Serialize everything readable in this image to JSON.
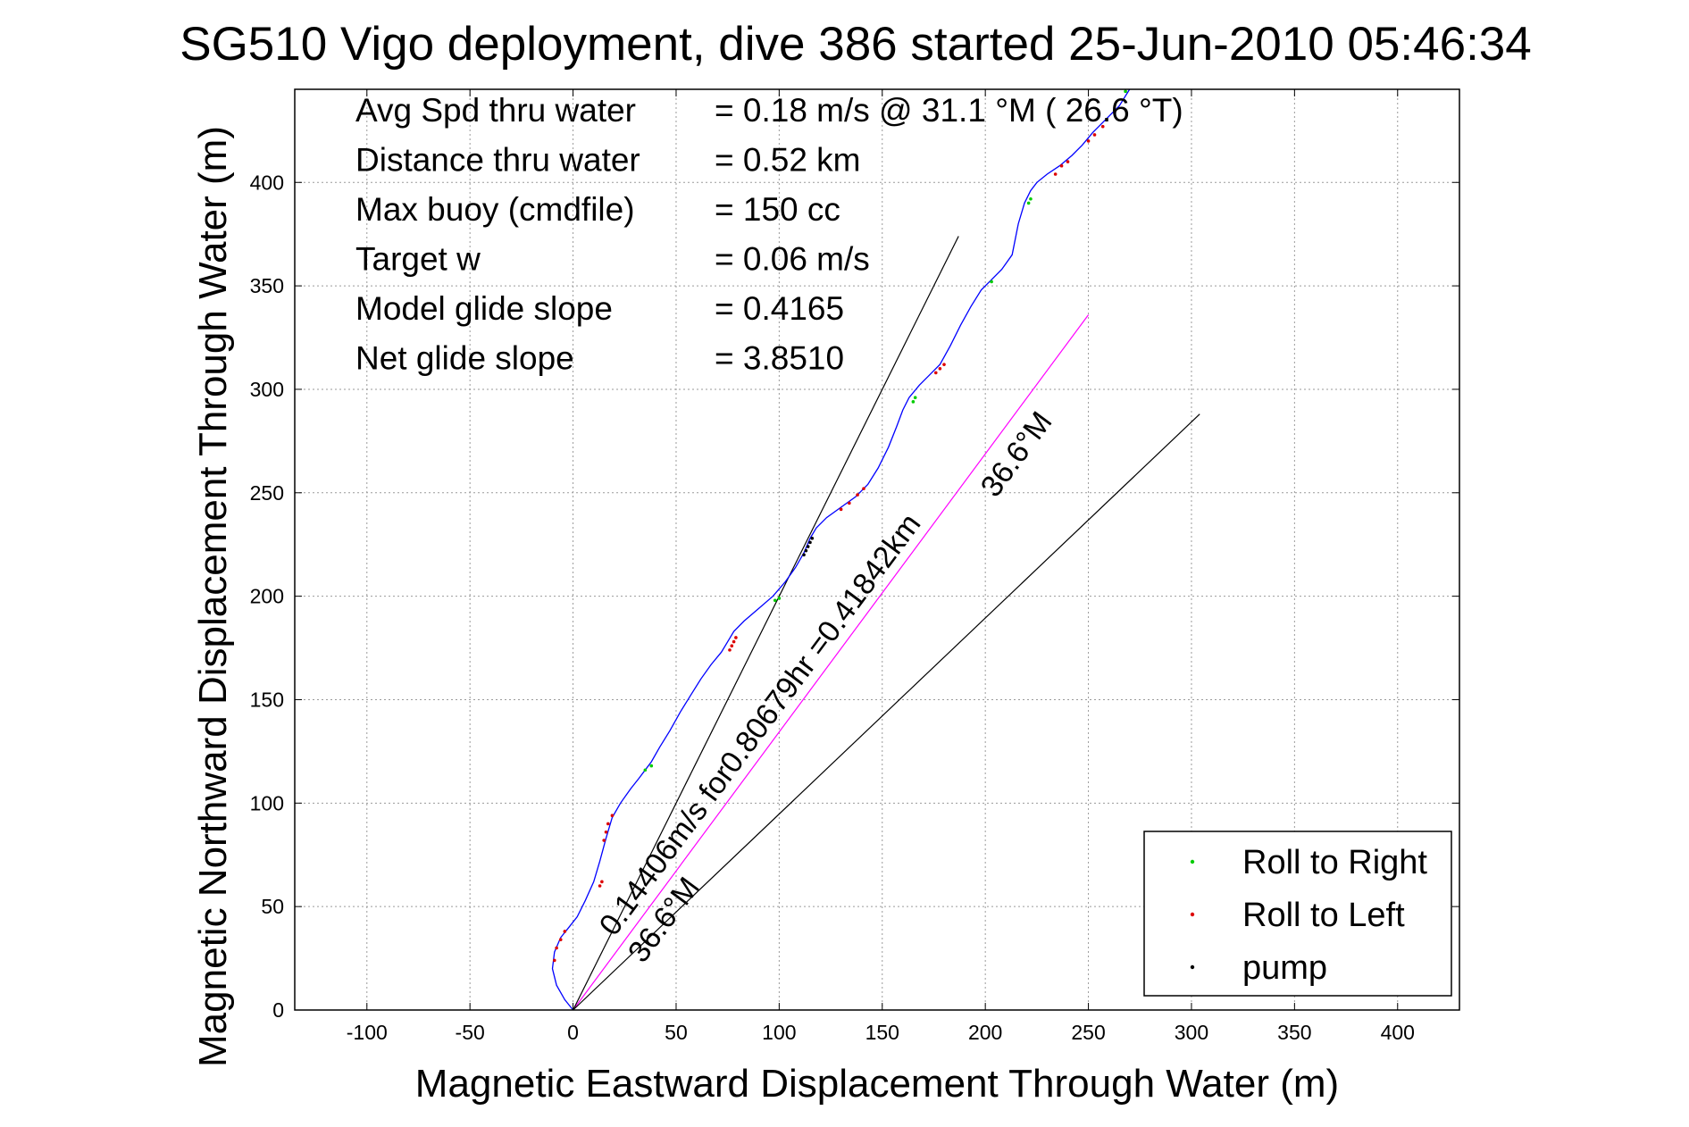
{
  "chart_data": {
    "type": "line",
    "title": "SG510 Vigo deployment, dive 386 started 25-Jun-2010 05:46:34",
    "xlabel": "Magnetic Eastward Displacement Through Water (m)",
    "ylabel": "Magnetic Northward Displacement Through Water (m)",
    "xlim": [
      -135,
      430
    ],
    "ylim": [
      0,
      445
    ],
    "xticks": [
      -100,
      -50,
      0,
      50,
      100,
      150,
      200,
      250,
      300,
      350,
      400
    ],
    "yticks": [
      0,
      50,
      100,
      150,
      200,
      250,
      300,
      350,
      400
    ],
    "grid": true,
    "legend_position": "bottom-right",
    "info_lines": [
      {
        "label": "Avg Spd thru water",
        "value": "=  0.18 m/s @  31.1 °M ( 26.6 °T)"
      },
      {
        "label": "Distance thru water",
        "value": "=  0.52 km"
      },
      {
        "label": "Max buoy (cmdfile)",
        "value": "= 150 cc"
      },
      {
        "label": "Target w",
        "value": "= 0.06 m/s"
      },
      {
        "label": "Model glide slope",
        "value": "= 0.4165"
      },
      {
        "label": "Net glide slope",
        "value": "= 3.8510"
      }
    ],
    "annotations": [
      {
        "text": "0.14406m/s for0.80679hr =0.41842km",
        "x": 20,
        "y": 35,
        "angle_deg": 53.4
      },
      {
        "text": "36.6°M",
        "x": 34,
        "y": 22,
        "angle_deg": 53.4
      },
      {
        "text": "36.6°M",
        "x": 205,
        "y": 247,
        "angle_deg": 53.4
      }
    ],
    "series": [
      {
        "name": "track",
        "color": "#0000ff",
        "x": [
          0,
          -4,
          -8,
          -10,
          -9,
          -6,
          -2,
          2,
          6,
          10,
          13,
          16,
          19,
          23,
          28,
          32,
          35,
          38,
          42,
          47,
          52,
          57,
          62,
          67,
          72,
          75,
          78,
          83,
          90,
          97,
          103,
          108,
          112,
          115,
          118,
          123,
          130,
          137,
          143,
          148,
          153,
          157,
          160,
          163,
          168,
          173,
          178,
          183,
          188,
          193,
          198,
          203,
          208,
          213,
          216,
          219,
          222,
          225,
          230,
          236,
          242,
          247,
          252,
          258,
          265,
          270
        ],
        "y": [
          0,
          5,
          12,
          20,
          28,
          35,
          40,
          45,
          53,
          62,
          72,
          83,
          93,
          100,
          107,
          112,
          116,
          120,
          127,
          135,
          144,
          152,
          160,
          167,
          173,
          178,
          183,
          188,
          194,
          200,
          207,
          214,
          221,
          228,
          233,
          238,
          243,
          248,
          254,
          262,
          272,
          282,
          290,
          296,
          302,
          307,
          312,
          321,
          331,
          340,
          348,
          353,
          358,
          365,
          380,
          390,
          396,
          400,
          404,
          408,
          413,
          418,
          424,
          430,
          437,
          445
        ]
      },
      {
        "name": "depth-averaged line",
        "color": "#ff00ff",
        "x": [
          0,
          250
        ],
        "y": [
          0,
          336
        ]
      },
      {
        "name": "heading line upper",
        "color": "#000000",
        "x": [
          0,
          187
        ],
        "y": [
          0,
          374
        ]
      },
      {
        "name": "heading line lower",
        "color": "#000000",
        "x": [
          0,
          304
        ],
        "y": [
          0,
          288
        ]
      }
    ],
    "markers": [
      {
        "name": "Roll to Right",
        "color": "#00cc00",
        "points": [
          [
            35,
            116
          ],
          [
            38,
            118
          ],
          [
            98,
            198
          ],
          [
            100,
            199
          ],
          [
            165,
            294
          ],
          [
            166,
            296
          ],
          [
            203,
            352
          ],
          [
            221,
            390
          ],
          [
            222,
            392
          ],
          [
            268,
            444
          ]
        ]
      },
      {
        "name": "Roll to Left",
        "color": "#dd0000",
        "points": [
          [
            -9,
            24
          ],
          [
            -8,
            30
          ],
          [
            -6,
            34
          ],
          [
            -4,
            38
          ],
          [
            13,
            60
          ],
          [
            14,
            62
          ],
          [
            15,
            82
          ],
          [
            16,
            86
          ],
          [
            17,
            90
          ],
          [
            19,
            94
          ],
          [
            76,
            174
          ],
          [
            77,
            176
          ],
          [
            78,
            178
          ],
          [
            79,
            180
          ],
          [
            130,
            242
          ],
          [
            134,
            245
          ],
          [
            138,
            249
          ],
          [
            141,
            252
          ],
          [
            176,
            308
          ],
          [
            178,
            310
          ],
          [
            180,
            312
          ],
          [
            234,
            404
          ],
          [
            237,
            408
          ],
          [
            240,
            410
          ],
          [
            250,
            420
          ],
          [
            253,
            423
          ],
          [
            257,
            427
          ]
        ]
      },
      {
        "name": "pump",
        "color": "#000000",
        "points": [
          [
            112,
            220
          ],
          [
            113,
            222
          ],
          [
            114,
            224
          ],
          [
            115,
            226
          ],
          [
            116,
            228
          ]
        ]
      }
    ],
    "legend": [
      {
        "label": "Roll to Right",
        "color": "#00cc00"
      },
      {
        "label": "Roll to Left",
        "color": "#dd0000"
      },
      {
        "label": "pump",
        "color": "#000000"
      }
    ]
  }
}
